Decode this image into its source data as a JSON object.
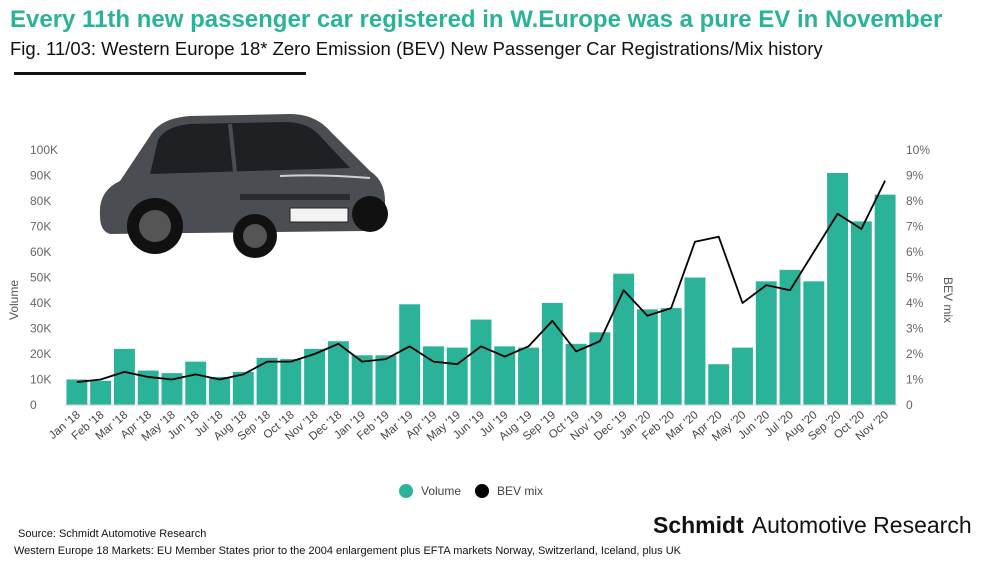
{
  "header": {
    "title": "Every 11th new passenger car registered in W.Europe was a pure EV in November",
    "subtitle": "Fig. 11/03: Western Europe 18* Zero Emission (BEV) New Passenger Car Registrations/Mix history"
  },
  "colors": {
    "bar": "#2bb39a",
    "line": "#000000",
    "title": "#2bb39a"
  },
  "car_icon": "car-photo-icon",
  "chart_data": {
    "type": "bar",
    "categories": [
      "Jan '18",
      "Feb '18",
      "Mar '18",
      "Apr '18",
      "May '18",
      "Jun '18",
      "Jul '18",
      "Aug '18",
      "Sep '18",
      "Oct '18",
      "Nov '18",
      "Dec '18",
      "Jan '19",
      "Feb '19",
      "Mar '19",
      "Apr '19",
      "May '19",
      "Jun '19",
      "Jul '19",
      "Aug '19",
      "Sep '19",
      "Oct '19",
      "Nov '19",
      "Dec '19",
      "Jan '20",
      "Feb '20",
      "Mar '20",
      "Apr '20",
      "May '20",
      "Jun '20",
      "Jul '20",
      "Aug '20",
      "Sep '20",
      "Oct '20",
      "Nov '20"
    ],
    "series": [
      {
        "name": "Volume",
        "type": "bar",
        "axis": "left",
        "values": [
          10000,
          9500,
          22000,
          13500,
          12500,
          17000,
          11000,
          13000,
          18500,
          18000,
          22000,
          25000,
          19500,
          19500,
          39500,
          23000,
          22500,
          33500,
          23000,
          22500,
          40000,
          24000,
          28500,
          51500,
          37500,
          38000,
          50000,
          16000,
          22500,
          48500,
          53000,
          48500,
          91000,
          72000,
          82500
        ]
      },
      {
        "name": "BEV mix",
        "type": "line",
        "axis": "right",
        "values": [
          0.9,
          1.0,
          1.3,
          1.1,
          1.0,
          1.2,
          1.0,
          1.2,
          1.7,
          1.7,
          2.0,
          2.4,
          1.7,
          1.8,
          2.3,
          1.7,
          1.6,
          2.3,
          1.9,
          2.3,
          3.3,
          2.1,
          2.5,
          4.5,
          3.5,
          3.8,
          6.4,
          6.6,
          4.0,
          4.7,
          4.5,
          6.0,
          7.5,
          6.9,
          8.8
        ]
      }
    ],
    "y_left": {
      "label": "Volume",
      "min": 0,
      "max": 100000,
      "ticks": [
        "0",
        "10K",
        "20K",
        "30K",
        "40K",
        "50K",
        "60K",
        "70K",
        "80K",
        "90K",
        "100K"
      ]
    },
    "y_right": {
      "label": "BEV mix",
      "min": 0,
      "max": 10,
      "ticks": [
        "0",
        "1%",
        "2%",
        "3%",
        "4%",
        "5%",
        "6%",
        "7%",
        "8%",
        "9%",
        "10%"
      ]
    },
    "grid": false,
    "legend": {
      "position": "bottom",
      "entries": [
        "Volume",
        "BEV mix"
      ]
    }
  },
  "footer": {
    "source": "Source: Schmidt Automotive Research",
    "footnote": "Western Europe 18 Markets: EU Member States prior to the 2004 enlargement plus EFTA markets Norway, Switzerland, Iceland, plus UK",
    "brand_bold": "Schmidt",
    "brand_rest": "Automotive Research"
  }
}
